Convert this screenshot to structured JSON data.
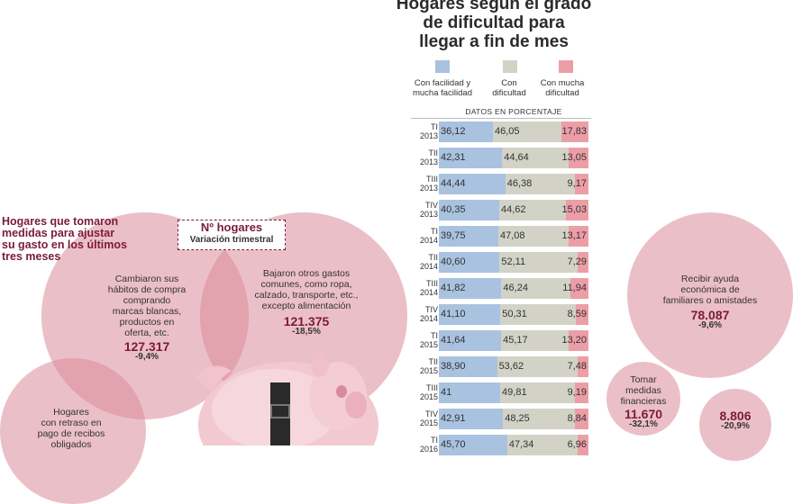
{
  "chart_data": {
    "type": "bar",
    "stacked": true,
    "orientation": "horizontal",
    "title": "Hogares según el grado de dificultad para llegar a fin de mes",
    "subtitle": "DATOS EN PORCENTAJE",
    "categories": [
      "TI 2013",
      "TII 2013",
      "TIII 2013",
      "TIV 2013",
      "TI 2014",
      "TII 2014",
      "TIII 2014",
      "TIV 2014",
      "TI 2015",
      "TII 2015",
      "TIII 2015",
      "TIV 2015",
      "TI 2016"
    ],
    "series": [
      {
        "name": "Con facilidad y mucha facilidad",
        "color": "#a9c2e0",
        "labels": [
          "36,12",
          "42,31",
          "44,44",
          "40,35",
          "39,75",
          "40,60",
          "41,82",
          "41,10",
          "41,64",
          "38,90",
          "41",
          "42,91",
          "45,70"
        ],
        "values": [
          36.12,
          42.31,
          44.44,
          40.35,
          39.75,
          40.6,
          41.82,
          41.1,
          41.64,
          38.9,
          41,
          42.91,
          45.7
        ]
      },
      {
        "name": "Con dificultad",
        "color": "#d2d3c6",
        "labels": [
          "46,05",
          "44,64",
          "46,38",
          "44,62",
          "47,08",
          "52,11",
          "46,24",
          "50,31",
          "45,17",
          "53,62",
          "49,81",
          "48,25",
          "47,34"
        ],
        "values": [
          46.05,
          44.64,
          46.38,
          44.62,
          47.08,
          52.11,
          46.24,
          50.31,
          45.17,
          53.62,
          49.81,
          48.25,
          47.34
        ]
      },
      {
        "name": "Con mucha dificultad",
        "color": "#ec9ea7",
        "labels": [
          "17,83",
          "13,05",
          "9,17",
          "15,03",
          "13,17",
          "7,29",
          "11,94",
          "8,59",
          "13,20",
          "7,48",
          "9,19",
          "8,84",
          "6,96"
        ],
        "values": [
          17.83,
          13.05,
          9.17,
          15.03,
          13.17,
          7.29,
          11.94,
          8.59,
          13.2,
          7.48,
          9.19,
          8.84,
          6.96
        ]
      }
    ],
    "xlim": [
      0,
      100
    ]
  },
  "chart_title_lines": [
    "Hogares según el grado",
    "de dificultad para",
    "llegar a fin de mes"
  ],
  "legend": [
    {
      "label_lines": [
        "Con facilidad y",
        "mucha facilidad"
      ]
    },
    {
      "label_lines": [
        "Con",
        "dificultad"
      ]
    },
    {
      "label_lines": [
        "Con mucha",
        "dificultad"
      ]
    }
  ],
  "row_labels": [
    [
      "TI",
      "2013"
    ],
    [
      "TII",
      "2013"
    ],
    [
      "TIII",
      "2013"
    ],
    [
      "TIV",
      "2013"
    ],
    [
      "TI",
      "2014"
    ],
    [
      "TII",
      "2014"
    ],
    [
      "TIII",
      "2014"
    ],
    [
      "TIV",
      "2014"
    ],
    [
      "TI",
      "2015"
    ],
    [
      "TII",
      "2015"
    ],
    [
      "TIII",
      "2015"
    ],
    [
      "TIV",
      "2015"
    ],
    [
      "TI",
      "2016"
    ]
  ],
  "left": {
    "heading_lines": [
      "Hogares que tomaron",
      "medidas para ajustar",
      "su gasto en los últimos",
      "tres meses"
    ],
    "box_title": "Nº hogares",
    "box_subtitle": "Variación trimestral",
    "c1_lines": [
      "Cambiaron sus",
      "hábitos de compra",
      "comprando",
      "marcas blancas,",
      "productos en",
      "oferta, etc."
    ],
    "c1_number": "127.317",
    "c1_pct": "-9,4%",
    "c2_lines": [
      "Bajaron otros gastos",
      "comunes, como ropa,",
      "calzado, transporte, etc.,",
      "excepto alimentación"
    ],
    "c2_number": "121.375",
    "c2_pct": "-18,5%",
    "c3_lines": [
      "Hogares",
      "con retraso en",
      "pago de recibos",
      "obligados"
    ]
  },
  "right": {
    "c1_lines": [
      "Recibir ayuda",
      "económica de",
      "familiares o amistades"
    ],
    "c1_number": "78.087",
    "c1_pct": "-9,6%",
    "c2_lines": [
      "Tomar",
      "medidas",
      "financieras"
    ],
    "c2_number": "11.670",
    "c2_pct": "-32,1%",
    "c3_number": "8.806",
    "c3_pct": "-20,9%"
  }
}
